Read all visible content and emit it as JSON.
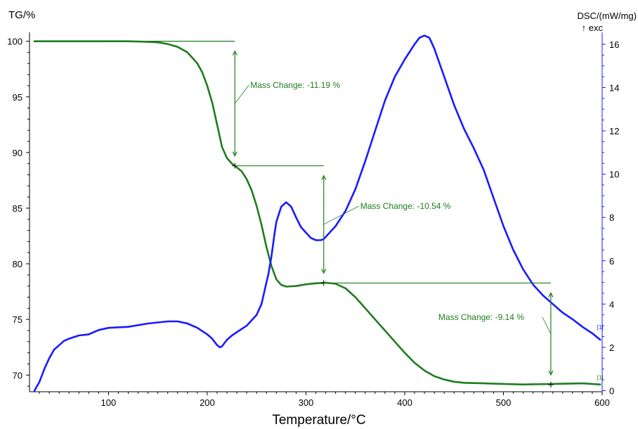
{
  "chart_data": {
    "type": "line",
    "xlabel": "Temperature/°C",
    "ylabel_left": "TG/%",
    "ylabel_right": "DSC/(mW/mg)",
    "ylabel_right_sub": "↑ exc",
    "xlim": [
      20,
      600
    ],
    "ylim_left": [
      68.5,
      100.8
    ],
    "ylim_right": [
      -0.05,
      16.55
    ],
    "x_ticks": [
      100,
      200,
      300,
      400,
      500,
      600
    ],
    "y_left_ticks": [
      70,
      75,
      80,
      85,
      90,
      95,
      100
    ],
    "y_right_ticks": [
      0,
      2,
      4,
      6,
      8,
      10,
      12,
      14,
      16
    ],
    "grid": false,
    "colors": {
      "tg": "#1e7d1e",
      "dsc": "#1a1aff"
    },
    "series": [
      {
        "axis": "left",
        "x": [
          25,
          40,
          60,
          80,
          100,
          120,
          140,
          150,
          160,
          170,
          180,
          190,
          195,
          200,
          205,
          210,
          215,
          220,
          225,
          228,
          235,
          240,
          245,
          250,
          255,
          260,
          265,
          270,
          275,
          280,
          290,
          300,
          310,
          320,
          330,
          340,
          350,
          360,
          370,
          380,
          390,
          400,
          410,
          420,
          430,
          440,
          450,
          460,
          480,
          500,
          520,
          550,
          580,
          598
        ],
        "values": [
          100.0,
          100.0,
          100.0,
          100.0,
          100.0,
          100.0,
          99.95,
          99.9,
          99.75,
          99.5,
          99.0,
          98.0,
          97.2,
          96.0,
          94.5,
          92.5,
          90.5,
          89.5,
          89.0,
          88.8,
          88.3,
          87.6,
          86.6,
          85.2,
          83.5,
          81.5,
          79.8,
          78.6,
          78.1,
          77.95,
          78.0,
          78.15,
          78.25,
          78.3,
          78.2,
          77.8,
          77.0,
          76.0,
          75.0,
          74.0,
          73.0,
          72.0,
          71.1,
          70.4,
          69.9,
          69.6,
          69.4,
          69.3,
          69.25,
          69.2,
          69.15,
          69.2,
          69.25,
          69.15
        ]
      },
      {
        "axis": "right",
        "x": [
          25,
          30,
          35,
          40,
          45,
          50,
          55,
          60,
          70,
          80,
          90,
          100,
          120,
          140,
          160,
          170,
          180,
          190,
          200,
          205,
          210,
          213,
          215,
          220,
          225,
          230,
          240,
          250,
          255,
          260,
          262,
          265,
          268,
          270,
          275,
          280,
          285,
          290,
          295,
          300,
          305,
          310,
          315,
          318,
          322,
          330,
          340,
          350,
          360,
          370,
          380,
          390,
          400,
          410,
          415,
          420,
          425,
          430,
          440,
          450,
          460,
          470,
          480,
          490,
          500,
          510,
          520,
          530,
          540,
          550,
          560,
          570,
          580,
          590,
          598
        ],
        "values": [
          0.0,
          0.4,
          1.0,
          1.5,
          1.9,
          2.1,
          2.3,
          2.4,
          2.55,
          2.6,
          2.8,
          2.9,
          2.95,
          3.1,
          3.2,
          3.2,
          3.1,
          2.9,
          2.6,
          2.4,
          2.1,
          2.0,
          2.05,
          2.35,
          2.55,
          2.7,
          3.0,
          3.5,
          4.0,
          5.0,
          5.4,
          6.2,
          7.2,
          7.8,
          8.5,
          8.7,
          8.5,
          8.0,
          7.55,
          7.3,
          7.05,
          6.95,
          6.95,
          7.0,
          7.2,
          7.6,
          8.3,
          9.3,
          10.6,
          12.0,
          13.4,
          14.5,
          15.3,
          16.0,
          16.3,
          16.4,
          16.3,
          15.8,
          14.5,
          13.2,
          12.1,
          11.2,
          10.2,
          8.9,
          7.6,
          6.5,
          5.6,
          4.9,
          4.4,
          4.0,
          3.6,
          3.3,
          2.95,
          2.65,
          2.35
        ]
      }
    ],
    "annotations": [
      {
        "label": "Mass Change: -11.19 %",
        "x_start": 228,
        "x_end": 228,
        "y_from": 100.0,
        "y_to": 88.81,
        "ref_line_xmax": 228
      },
      {
        "label": "Mass Change: -10.54 %",
        "x_start": 318,
        "x_end": 318,
        "y_from": 88.81,
        "y_to": 78.27,
        "ref_line_xmax": 318
      },
      {
        "label": "Mass Change: -9.14 %",
        "x_start": 548,
        "x_end": 548,
        "y_from": 78.27,
        "y_to": 69.13,
        "ref_line_xmax": 548
      }
    ],
    "curve_markers": [
      "[1]",
      "[1]"
    ]
  }
}
